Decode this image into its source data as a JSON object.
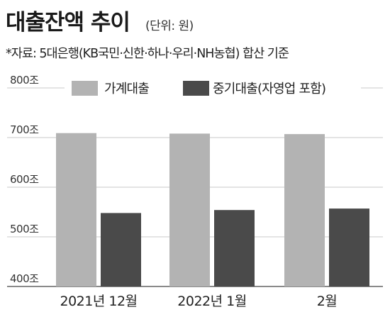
{
  "header": {
    "title": "대출잔액 추이",
    "unit": "(단위: 원)",
    "note": "*자료: 5대은행(KB국민·신한·하나·우리·NH농협) 합산 기준"
  },
  "chart_data": {
    "type": "bar",
    "categories": [
      "2021년 12월",
      "2022년 1월",
      "2월"
    ],
    "series": [
      {
        "name": "가계대출",
        "values": [
          709,
          708,
          707
        ],
        "color": "#b3b3b3"
      },
      {
        "name": "중기대출(자영업 포함)",
        "values": [
          548,
          554,
          557
        ],
        "color": "#4a4a4a"
      }
    ],
    "ylim": [
      400,
      800
    ],
    "yticks": [
      400,
      500,
      600,
      700,
      800
    ],
    "ytick_labels": [
      "400조",
      "500조",
      "600조",
      "700조",
      "800조"
    ],
    "grid": true,
    "legend": "top"
  }
}
